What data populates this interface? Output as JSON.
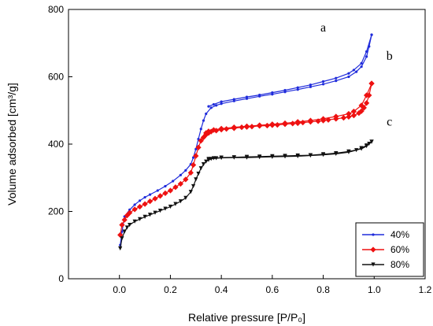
{
  "chart_data": {
    "type": "line",
    "title": "",
    "xlabel": "Relative pressure [P/P₀]",
    "ylabel": "Volume adsorbed [cm³/g]",
    "xlim": [
      -0.2,
      1.2
    ],
    "ylim": [
      0,
      800
    ],
    "xticks": [
      0.0,
      0.2,
      0.4,
      0.6,
      0.8,
      1.0,
      1.2
    ],
    "xtick_labels": [
      "0.0",
      "0.2",
      "0.4",
      "0.6",
      "0.8",
      "1.0",
      "1.2"
    ],
    "yticks": [
      0,
      200,
      400,
      600,
      800
    ],
    "ytick_labels": [
      "0",
      "200",
      "400",
      "600",
      "800"
    ],
    "grid": false,
    "legend_position": "bottom-right",
    "annotations": [
      {
        "text": "a",
        "x": 0.8,
        "y": 735
      },
      {
        "text": "b",
        "x": 1.06,
        "y": 650
      },
      {
        "text": "c",
        "x": 1.06,
        "y": 455
      }
    ],
    "series": [
      {
        "name": "40%",
        "color": "#1f2bdb",
        "marker": "small-dot",
        "adsorption": {
          "x": [
            0.003,
            0.01,
            0.02,
            0.04,
            0.06,
            0.08,
            0.1,
            0.12,
            0.15,
            0.18,
            0.21,
            0.24,
            0.26,
            0.28,
            0.29,
            0.3,
            0.31,
            0.32,
            0.33,
            0.34,
            0.36,
            0.38,
            0.4,
            0.45,
            0.5,
            0.55,
            0.6,
            0.65,
            0.7,
            0.75,
            0.8,
            0.85,
            0.9,
            0.93,
            0.95,
            0.97,
            0.98,
            0.99
          ],
          "y": [
            100,
            140,
            185,
            205,
            220,
            232,
            242,
            250,
            262,
            275,
            290,
            308,
            322,
            340,
            360,
            385,
            415,
            445,
            470,
            490,
            508,
            515,
            520,
            528,
            535,
            542,
            548,
            555,
            562,
            570,
            578,
            588,
            600,
            615,
            630,
            660,
            690,
            725
          ]
        },
        "desorption": {
          "x": [
            0.99,
            0.97,
            0.95,
            0.92,
            0.9,
            0.85,
            0.8,
            0.75,
            0.7,
            0.65,
            0.6,
            0.55,
            0.5,
            0.45,
            0.4,
            0.37,
            0.35
          ],
          "y": [
            725,
            675,
            640,
            620,
            610,
            596,
            586,
            576,
            568,
            560,
            553,
            546,
            540,
            533,
            526,
            518,
            512
          ]
        }
      },
      {
        "name": "60%",
        "color": "#ee1111",
        "marker": "diamond",
        "adsorption": {
          "x": [
            0.003,
            0.01,
            0.02,
            0.03,
            0.04,
            0.06,
            0.08,
            0.1,
            0.12,
            0.14,
            0.16,
            0.18,
            0.2,
            0.22,
            0.24,
            0.26,
            0.28,
            0.29,
            0.3,
            0.31,
            0.32,
            0.33,
            0.34,
            0.35,
            0.36,
            0.38,
            0.4,
            0.42,
            0.45,
            0.48,
            0.5,
            0.52,
            0.55,
            0.58,
            0.6,
            0.62,
            0.65,
            0.68,
            0.7,
            0.72,
            0.75,
            0.78,
            0.8,
            0.82,
            0.85,
            0.88,
            0.9,
            0.92,
            0.94,
            0.95,
            0.96,
            0.97,
            0.98,
            0.99
          ],
          "y": [
            130,
            160,
            175,
            188,
            196,
            206,
            214,
            222,
            230,
            238,
            246,
            254,
            262,
            272,
            282,
            295,
            315,
            338,
            365,
            390,
            410,
            420,
            428,
            433,
            437,
            440,
            443,
            445,
            447,
            450,
            451,
            452,
            454,
            455,
            456,
            457,
            459,
            461,
            462,
            464,
            466,
            468,
            470,
            472,
            475,
            478,
            481,
            485,
            492,
            498,
            508,
            522,
            545,
            580
          ]
        },
        "desorption": {
          "x": [
            0.99,
            0.97,
            0.95,
            0.92,
            0.9,
            0.85,
            0.8,
            0.75,
            0.7,
            0.65,
            0.6,
            0.55,
            0.5,
            0.45,
            0.4,
            0.37,
            0.35,
            0.34
          ],
          "y": [
            580,
            545,
            515,
            497,
            490,
            482,
            475,
            470,
            466,
            462,
            459,
            456,
            453,
            450,
            446,
            442,
            438,
            433
          ]
        }
      },
      {
        "name": "80%",
        "color": "#111111",
        "marker": "triangle",
        "adsorption": {
          "x": [
            0.003,
            0.01,
            0.02,
            0.03,
            0.04,
            0.06,
            0.08,
            0.1,
            0.12,
            0.14,
            0.16,
            0.18,
            0.2,
            0.22,
            0.24,
            0.26,
            0.28,
            0.29,
            0.3,
            0.31,
            0.32,
            0.33,
            0.34,
            0.35,
            0.36,
            0.38,
            0.4,
            0.45,
            0.5,
            0.55,
            0.6,
            0.65,
            0.7,
            0.75,
            0.8,
            0.85,
            0.9,
            0.93,
            0.95,
            0.97,
            0.98,
            0.99
          ],
          "y": [
            90,
            120,
            140,
            152,
            160,
            170,
            177,
            184,
            190,
            196,
            202,
            208,
            214,
            222,
            230,
            240,
            258,
            275,
            295,
            312,
            328,
            340,
            348,
            353,
            356,
            358,
            359,
            360,
            360,
            361,
            362,
            363,
            364,
            366,
            368,
            371,
            376,
            382,
            388,
            396,
            401,
            407
          ]
        },
        "desorption": {
          "x": [
            0.99,
            0.97,
            0.95,
            0.9,
            0.85,
            0.8,
            0.75,
            0.7,
            0.65,
            0.6,
            0.55,
            0.5,
            0.45,
            0.4,
            0.37,
            0.35
          ],
          "y": [
            407,
            394,
            386,
            378,
            373,
            370,
            367,
            366,
            365,
            364,
            363,
            362,
            361,
            360,
            358,
            356
          ]
        }
      }
    ]
  }
}
